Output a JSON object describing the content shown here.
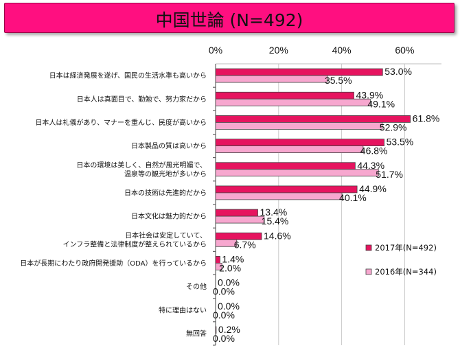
{
  "title": "中国世論 (N=492)",
  "colors": {
    "series_2017": "#e6145f",
    "series_2016": "#f7a7cf",
    "edge": "#444444",
    "banner": "#ff0f80"
  },
  "chart_data": {
    "type": "bar",
    "orientation": "horizontal",
    "xlim": [
      0,
      70
    ],
    "ticks": [
      0,
      20,
      40,
      60
    ],
    "tick_labels": [
      "0%",
      "20%",
      "40%",
      "60%"
    ],
    "grid": true,
    "legend_position": "right",
    "categories": [
      [
        "日本は経済発展を遂げ、国民の生活水準も高いから"
      ],
      [
        "日本人は真面目で、勤勉で、努力家だから"
      ],
      [
        "日本人は礼儀があり、マナーを重んじ、民度が高いから"
      ],
      [
        "日本製品の質は高いから"
      ],
      [
        "日本の環境は美しく、自然が風光明媚で、",
        "温泉等の観光地が多いから"
      ],
      [
        "日本の技術は先進的だから"
      ],
      [
        "日本文化は魅力的だから"
      ],
      [
        "日本社会は安定していて、",
        "インフラ整備と法律制度が整えられているから"
      ],
      [
        "日本が長期にわたり政府開発援助（ODA）を行っているから"
      ],
      [
        "その他"
      ],
      [
        "特に理由はない"
      ],
      [
        "無回答"
      ]
    ],
    "series": [
      {
        "name": "2017年(N=492)",
        "values": [
          53.0,
          43.9,
          61.8,
          53.5,
          44.3,
          44.9,
          13.4,
          14.6,
          1.4,
          0.0,
          0.0,
          0.2
        ],
        "labels": [
          "53.0%",
          "43.9%",
          "61.8%",
          "53.5%",
          "44.3%",
          "44.9%",
          "13.4%",
          "14.6%",
          "1.4%",
          "0.0%",
          "0.0%",
          "0.2%"
        ]
      },
      {
        "name": "2016年(N=344)",
        "values": [
          35.5,
          49.1,
          52.9,
          46.8,
          51.7,
          40.1,
          15.4,
          6.7,
          2.0,
          0.0,
          0.0,
          0.0
        ],
        "labels": [
          "35.5%",
          "49.1%",
          "52.9%",
          "46.8%",
          "51.7%",
          "40.1%",
          "15.4%",
          "6.7%",
          "2.0%",
          "0.0%",
          "0.0%",
          "0.0%"
        ]
      }
    ]
  }
}
